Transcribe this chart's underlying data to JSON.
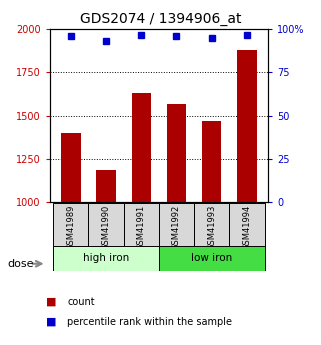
{
  "title": "GDS2074 / 1394906_at",
  "samples": [
    "GSM41989",
    "GSM41990",
    "GSM41991",
    "GSM41992",
    "GSM41993",
    "GSM41994"
  ],
  "counts": [
    1400,
    1185,
    1630,
    1570,
    1470,
    1880
  ],
  "percentiles": [
    96,
    93,
    97,
    96,
    95,
    97
  ],
  "bar_color": "#aa0000",
  "dot_color": "#0000cc",
  "ylim_left": [
    1000,
    2000
  ],
  "ylim_right": [
    0,
    100
  ],
  "yticks_left": [
    1000,
    1250,
    1500,
    1750,
    2000
  ],
  "yticks_right": [
    0,
    25,
    50,
    75,
    100
  ],
  "grid_values": [
    1250,
    1500,
    1750
  ],
  "title_fontsize": 10,
  "tick_fontsize": 7,
  "label_color_left": "#cc0000",
  "label_color_right": "#0000cc",
  "sample_bg_color": "#d8d8d8",
  "group1_color": "#ccffcc",
  "group2_color": "#44dd44",
  "dose_label": "dose",
  "legend_count_label": "count",
  "legend_pct_label": "percentile rank within the sample"
}
